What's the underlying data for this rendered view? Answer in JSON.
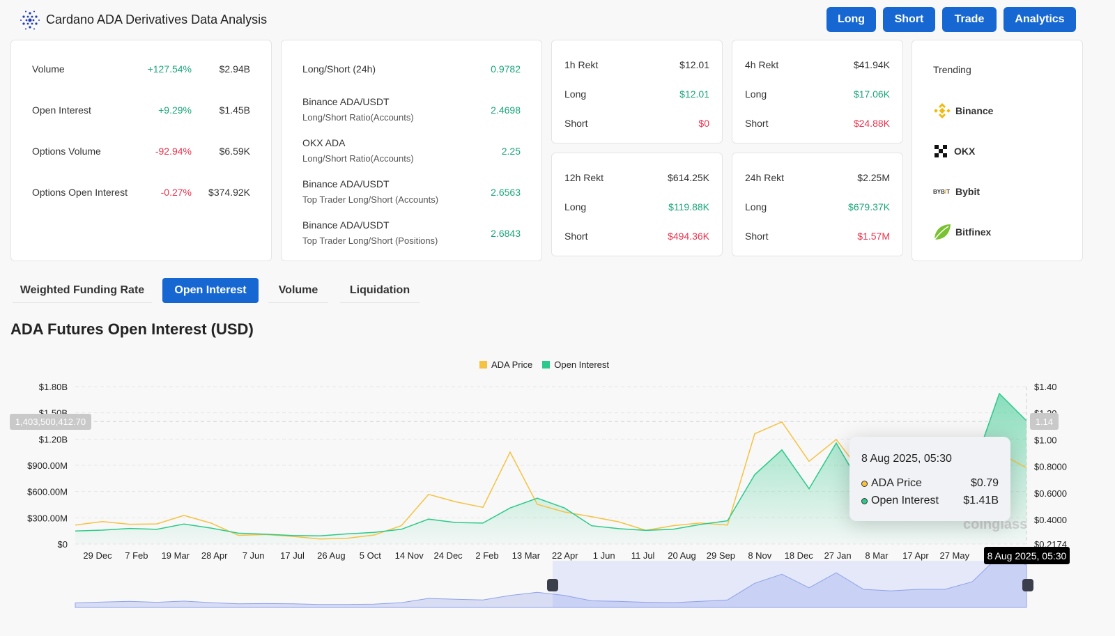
{
  "header": {
    "title": "Cardano ADA Derivatives Data Analysis",
    "buttons": [
      "Long",
      "Short",
      "Trade",
      "Analytics"
    ]
  },
  "market": [
    {
      "label": "Volume",
      "change": "+127.54%",
      "value": "$2.94B",
      "dir": "up"
    },
    {
      "label": "Open Interest",
      "change": "+9.29%",
      "value": "$1.45B",
      "dir": "up"
    },
    {
      "label": "Options Volume",
      "change": "-92.94%",
      "value": "$6.59K",
      "dir": "down"
    },
    {
      "label": "Options Open Interest",
      "change": "-0.27%",
      "value": "$374.92K",
      "dir": "down"
    }
  ],
  "ratios": [
    {
      "title": "Long/Short (24h)",
      "sub": "",
      "value": "0.9782"
    },
    {
      "title": "Binance ADA/USDT",
      "sub": "Long/Short Ratio(Accounts)",
      "value": "2.4698"
    },
    {
      "title": "OKX ADA",
      "sub": "Long/Short Ratio(Accounts)",
      "value": "2.25"
    },
    {
      "title": "Binance ADA/USDT",
      "sub": "Top Trader Long/Short (Accounts)",
      "value": "2.6563"
    },
    {
      "title": "Binance ADA/USDT",
      "sub": "Top Trader Long/Short (Positions)",
      "value": "2.6843"
    }
  ],
  "rekt": [
    {
      "title": "1h Rekt",
      "total": "$12.01",
      "long": "$12.01",
      "short": "$0"
    },
    {
      "title": "4h Rekt",
      "total": "$41.94K",
      "long": "$17.06K",
      "short": "$24.88K"
    },
    {
      "title": "12h Rekt",
      "total": "$614.25K",
      "long": "$119.88K",
      "short": "$494.36K"
    },
    {
      "title": "24h Rekt",
      "total": "$2.25M",
      "long": "$679.37K",
      "short": "$1.57M"
    }
  ],
  "rekt_labels": {
    "long": "Long",
    "short": "Short"
  },
  "trending": {
    "title": "Trending",
    "items": [
      {
        "name": "Binance",
        "icon": "binance-icon"
      },
      {
        "name": "OKX",
        "icon": "okx-icon"
      },
      {
        "name": "Bybit",
        "icon": "bybit-icon"
      },
      {
        "name": "Bitfinex",
        "icon": "bitfinex-icon"
      }
    ]
  },
  "tabs": [
    "Weighted Funding Rate",
    "Open Interest",
    "Volume",
    "Liquidation"
  ],
  "active_tab": "Open Interest",
  "chart_data": {
    "type": "line",
    "title": "ADA Futures Open Interest (USD)",
    "legend": [
      "ADA Price",
      "Open Interest"
    ],
    "legend_position": "top",
    "colors": {
      "ADA Price": "#f5c242",
      "Open Interest": "#2cc98a"
    },
    "x_ticks": [
      "29 Dec",
      "7 Feb",
      "19 Mar",
      "28 Apr",
      "7 Jun",
      "17 Jul",
      "26 Aug",
      "5 Oct",
      "14 Nov",
      "24 Dec",
      "2 Feb",
      "13 Mar",
      "22 Apr",
      "1 Jun",
      "11 Jul",
      "20 Aug",
      "29 Sep",
      "8 Nov",
      "18 Dec",
      "27 Jan",
      "8 Mar",
      "17 Apr",
      "27 May"
    ],
    "y_left_ticks": [
      "$0",
      "$300.00M",
      "$600.00M",
      "$900.00M",
      "$1.20B",
      "$1.50B",
      "$1.80B"
    ],
    "y_right_ticks": [
      "$0.2174",
      "$0.4000",
      "$0.6000",
      "$0.8000",
      "$1.00",
      "$1.20",
      "$1.40"
    ],
    "ylim_left": [
      0,
      1800000000
    ],
    "ylim_right": [
      0.2174,
      1.4
    ],
    "grid": true,
    "series": [
      {
        "name": "Open Interest",
        "axis": "left",
        "values": [
          0.15,
          0.18,
          0.2,
          0.17,
          0.21,
          0.16,
          0.12,
          0.13,
          0.12,
          0.1,
          0.1,
          0.11,
          0.16,
          0.3,
          0.27,
          0.25,
          0.4,
          0.5,
          0.4,
          0.22,
          0.2,
          0.17,
          0.16,
          0.2,
          0.25,
          0.8,
          1.1,
          0.65,
          1.15,
          0.6,
          0.55,
          0.6,
          0.6,
          0.85,
          1.72,
          1.41
        ]
      },
      {
        "name": "ADA Price",
        "axis": "right",
        "values": [
          0.36,
          0.4,
          0.38,
          0.37,
          0.42,
          0.36,
          0.28,
          0.3,
          0.29,
          0.26,
          0.25,
          0.27,
          0.35,
          0.6,
          0.55,
          0.5,
          0.9,
          0.5,
          0.45,
          0.43,
          0.4,
          0.33,
          0.35,
          0.36,
          0.35,
          1.05,
          1.15,
          0.85,
          1.0,
          0.72,
          0.68,
          0.7,
          0.7,
          0.65,
          0.9,
          0.79
        ]
      }
    ],
    "crosshair": {
      "left_value": "1,403,500,412.70",
      "right_value": "1.14",
      "x_value": "8 Aug 2025, 05:30"
    },
    "tooltip": {
      "date": "8 Aug 2025, 05:30",
      "rows": [
        {
          "label": "ADA Price",
          "value": "$0.79"
        },
        {
          "label": "Open Interest",
          "value": "$1.41B"
        }
      ]
    },
    "watermark": "coinglass"
  }
}
